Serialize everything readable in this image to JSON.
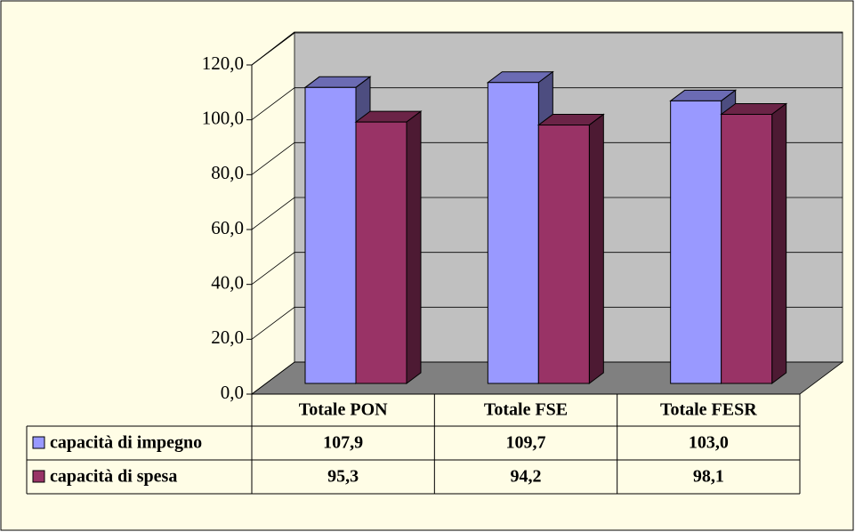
{
  "chart_data": {
    "type": "bar3d",
    "categories": [
      "Totale PON",
      "Totale FSE",
      "Totale FESR"
    ],
    "series": [
      {
        "name": "capacità di impegno",
        "color": "#9999ff",
        "values": [
          107.9,
          109.7,
          103.0
        ],
        "value_labels": [
          "107,9",
          "109,7",
          "103,0"
        ]
      },
      {
        "name": "capacità di spesa",
        "color": "#993366",
        "values": [
          95.3,
          94.2,
          98.1
        ],
        "value_labels": [
          "95,3",
          "94,2",
          "98,1"
        ]
      }
    ],
    "ylim": [
      0,
      120
    ],
    "yticks": [
      {
        "value": 0,
        "label": "0,0"
      },
      {
        "value": 20,
        "label": "20,0"
      },
      {
        "value": 40,
        "label": "40,0"
      },
      {
        "value": 60,
        "label": "60,0"
      },
      {
        "value": 80,
        "label": "80,0"
      },
      {
        "value": 100,
        "label": "100,0"
      },
      {
        "value": 120,
        "label": "120,0"
      }
    ],
    "grid": true
  }
}
